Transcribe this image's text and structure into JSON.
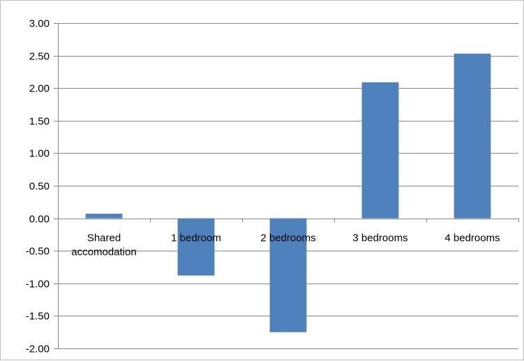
{
  "chart_data": {
    "type": "bar",
    "categories": [
      "Shared accomodation",
      "1 bedroom",
      "2 bedrooms",
      "3 bedrooms",
      "4 bedrooms"
    ],
    "category_lines": [
      [
        "Shared",
        "accomodation"
      ],
      [
        "1 bedroom"
      ],
      [
        "2 bedrooms"
      ],
      [
        "3 bedrooms"
      ],
      [
        "4 bedrooms"
      ]
    ],
    "values": [
      0.07,
      -0.88,
      -1.75,
      2.09,
      2.53
    ],
    "ylim": [
      -2.0,
      3.0
    ],
    "yticks": [
      3.0,
      2.5,
      2.0,
      1.5,
      1.0,
      0.5,
      0.0,
      -0.5,
      -1.0,
      -1.5,
      -2.0
    ],
    "ytick_labels": [
      "3.00",
      "2.50",
      "2.00",
      "1.50",
      "1.00",
      "0.50",
      "0.00",
      "-0.50",
      "-1.00",
      "-1.50",
      "-2.00"
    ],
    "title": "",
    "xlabel": "",
    "ylabel": "",
    "grid": true,
    "legend": "none",
    "bar_color": "#4f81bd",
    "grid_color": "#868686"
  }
}
